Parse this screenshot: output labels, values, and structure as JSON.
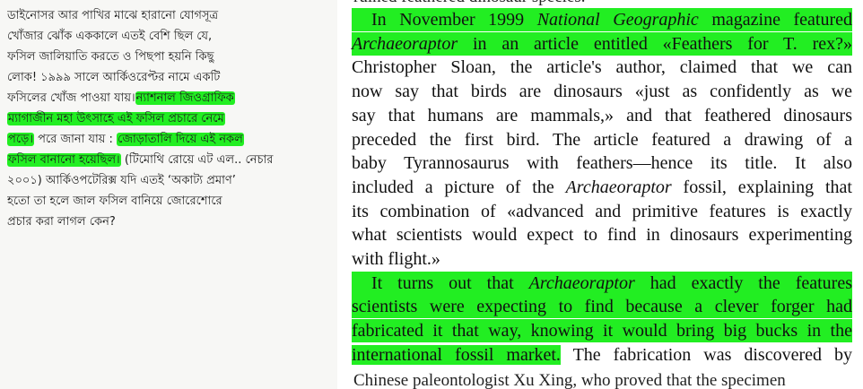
{
  "colors": {
    "highlight": "#22ee22",
    "left_bg": "#f7f7f5"
  },
  "left_text": {
    "lines": [
      {
        "text": "ডাইনোসর আর পাখির মাঝে হারানো যোগসূত্র"
      },
      {
        "text": "খোঁজার ঝোঁক এককালে এতই বেশি ছিল যে,"
      },
      {
        "text": "ফসিল জালিয়াতি করতে ও পিছপা হয়নি কিছু"
      },
      {
        "text": "লোক! ১৯৯৯ সালে আর্কিওরেপ্টর নামে একটি"
      },
      {
        "text": "ফসিলের খোঁজ পাওয়া যায়।",
        "highlight": "ন্যাশনাল জিওগ্রাফিক"
      },
      {
        "highlight": "ম্যাগাজীন মহা উৎসাহে এই ফসিল প্রচারে নেমে"
      },
      {
        "highlight": "পড়ে।",
        "text": " পরে জানা যায় : ",
        "highlight2": "জোড়াতালি দিয়ে এই নকল"
      },
      {
        "highlight": "ফসিল বানানো হয়েছিল।",
        "text": " (টিমোথি রোয়ে এট এল.. নেচার"
      },
      {
        "text": "২০০১) আর্কিওপটেরিক্স যদি এতই ‘অকাট্য প্রমাণ’"
      },
      {
        "text": "হতো তা হলে জাল ফসিল বানিয়ে জোরেশোরে"
      },
      {
        "text": "প্রচার করা লাগল কেন?"
      }
    ]
  },
  "right_text": {
    "cut_top": "ruined feathered dinosaur species.",
    "lines": [
      {
        "segments": [
          {
            "t": "In November 1999 "
          },
          {
            "t": "National Geographic",
            "i": true
          },
          {
            "t": " magazine featured"
          }
        ],
        "hl": true
      },
      {
        "segments": [
          {
            "t": "Archaeoraptor",
            "i": true
          },
          {
            "t": " in an article entitled «Feathers for T. rex?»"
          }
        ],
        "hl": true
      },
      {
        "segments": [
          {
            "t": "Christopher Sloan, the article's author, claimed that we can"
          }
        ]
      },
      {
        "segments": [
          {
            "t": "now say that birds are dinosaurs «just as confidently as we"
          }
        ]
      },
      {
        "segments": [
          {
            "t": "say that humans are mammals,» and that feathered dinosaurs"
          }
        ]
      },
      {
        "segments": [
          {
            "t": "preceded the first bird. The article featured a drawing of a"
          }
        ]
      },
      {
        "segments": [
          {
            "t": "baby Tyrannosaurus with feathers—hence its title. It also"
          }
        ]
      },
      {
        "segments": [
          {
            "t": "included a picture of the "
          },
          {
            "t": "Archaeoraptor",
            "i": true
          },
          {
            "t": " fossil, explaining that"
          }
        ]
      },
      {
        "segments": [
          {
            "t": "its combination of «advanced and primitive features is exactly"
          }
        ]
      },
      {
        "segments": [
          {
            "t": "what scientists would expect to find in dinosaurs experimenting"
          }
        ]
      },
      {
        "segments": [
          {
            "t": "with flight.»"
          }
        ],
        "last": true
      },
      {
        "segments": [
          {
            "t": "It turns out that "
          },
          {
            "t": "Archaeoraptor",
            "i": true
          },
          {
            "t": " had exactly the features"
          }
        ],
        "hl": true
      },
      {
        "segments": [
          {
            "t": "scientists were expecting to find because a clever forger had"
          }
        ],
        "hl": true
      },
      {
        "segments": [
          {
            "t": "fabricated it that way, knowing it would bring big bucks in the"
          }
        ],
        "hl": true
      },
      {
        "segments": [
          {
            "t": "international fossil market.",
            "h": true
          },
          {
            "t": " The fabrication was discovered by"
          }
        ]
      }
    ],
    "cut_bottom": "Chinese paleontologist Xu Xing, who proved that the specimen"
  }
}
